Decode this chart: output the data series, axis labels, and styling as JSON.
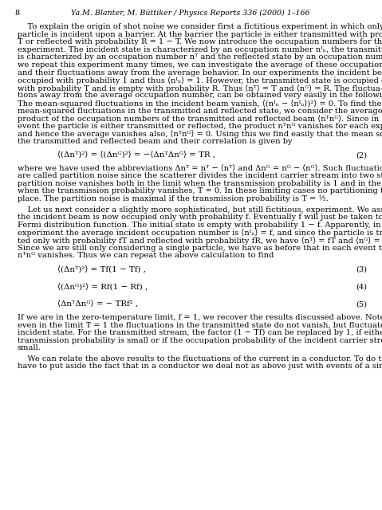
{
  "page_number": "8",
  "header": "Ya.M. Blanter, M. Büttiker / Physics Reports 336 (2000) 1–166",
  "background_color": "#ffffff",
  "text_color": "#000000",
  "para1_lines": [
    "    To explain the origin of shot noise we consider first a fictitious experiment in which only one",
    "particle is incident upon a barrier. At the barrier the particle is either transmitted with probability",
    "T or reflected with probability R = 1 − T. We now introduce the occupation numbers for this",
    "experiment. The incident state is characterized by an occupation number nᴵₙ, the transmitted state",
    "is characterized by an occupation number nᵀ and the reflected state by an occupation number nᴳ. If",
    "we repeat this experiment many times, we can investigate the average of these occupation numbers",
    "and their fluctuations away from the average behavior. In our experiments the incident beam is",
    "occupied with probability 1 and thus ⟨nᴵₙ⟩ = 1. However, the transmitted state is occupied only",
    "with probability T and is empty with probability R. Thus ⟨nᵀ⟩ = T and ⟨nᴳ⟩ = R. The fluctua-",
    "tions away from the average occupation number, can be obtained very easily in the following way:",
    "The mean-squared fluctuations in the incident beam vanish, ⟨(nᴵₙ − ⟨nᴵₙ⟩)²⟩ = 0. To find the",
    "mean-squared fluctuations in the transmitted and reflected state, we consider the average of the",
    "product of the occupation numbers of the transmitted and reflected beam ⟨nᵀnᴳ⟩. Since in each",
    "event the particle is either transmitted or reflected, the product nᵀnᴳ vanishes for each experiment,",
    "and hence the average vanishes also, ⟨nᵀnᴳ⟩ = 0. Using this we find easily that the mean squares of",
    "the transmitted and reflected beam and their correlation is given by"
  ],
  "eq2_text": "⟨(Δnᵀ)²⟩ = ⟨(Δnᴳ)²⟩ = −⟨ΔnᵀΔnᴳ⟩ = TR ,",
  "eq2_num": "(2)",
  "para2_lines": [
    "where we have used the abbreviations Δnᵀ = nᵀ − ⟨nᵀ⟩ and Δnᴳ = nᴳ − ⟨nᴳ⟩. Such fluctuations",
    "are called partition noise since the scatterer divides the incident carrier stream into two streams. The",
    "partition noise vanishes both in the limit when the transmission probability is 1 and in the limit",
    "when the transmission probability vanishes, T = 0. In these limiting cases no partitioning takes",
    "place. The partition noise is maximal if the transmission probability is T = ½."
  ],
  "para3_lines": [
    "    Let us next consider a slightly more sophisticated, but still fictitious, experiment. We assume that",
    "the incident beam is now occupied only with probability f. Eventually f will just be taken to be the",
    "Fermi distribution function. The initial state is empty with probability 1 − f. Apparently, in this",
    "experiment the average incident occupation number is ⟨nᴵₙ⟩ = f, and since the particle is transmit-",
    "ted only with probability fT and reflected with probability fR, we have ⟨nᵀ⟩ = fT and ⟨nᴳ⟩ = fR.",
    "Since we are still only considering a single particle, we have as before that in each event the product",
    "nᵀnᴳ vanishes. Thus we can repeat the above calculation to find"
  ],
  "eq3_text": "⟨(Δnᵀ)²⟩ = Tf(1 − Tf) ,",
  "eq3_num": "(3)",
  "eq4_text": "⟨(Δnᴳ)²⟩ = Rf(1 − Rf) ,",
  "eq4_num": "(4)",
  "eq5_text": "⟨ΔnᵀΔnᴳ⟩ = − TRf² ,",
  "eq5_num": "(5)",
  "para4_lines": [
    "If we are in the zero-temperature limit, f = 1, we recover the results discussed above. Note that now",
    "even in the limit T = 1 the fluctuations in the transmitted state do not vanish, but fluctuate like the",
    "incident state. For the transmitted stream, the factor (1 − Tf) can be replaced by 1, if either the",
    "transmission probability is small or if the occupation probability of the incident carrier stream is",
    "small."
  ],
  "para5_lines": [
    "    We can relate the above results to the fluctuations of the current in a conductor. To do this we",
    "have to put aside the fact that in a conductor we deal not as above just with events of a single"
  ]
}
